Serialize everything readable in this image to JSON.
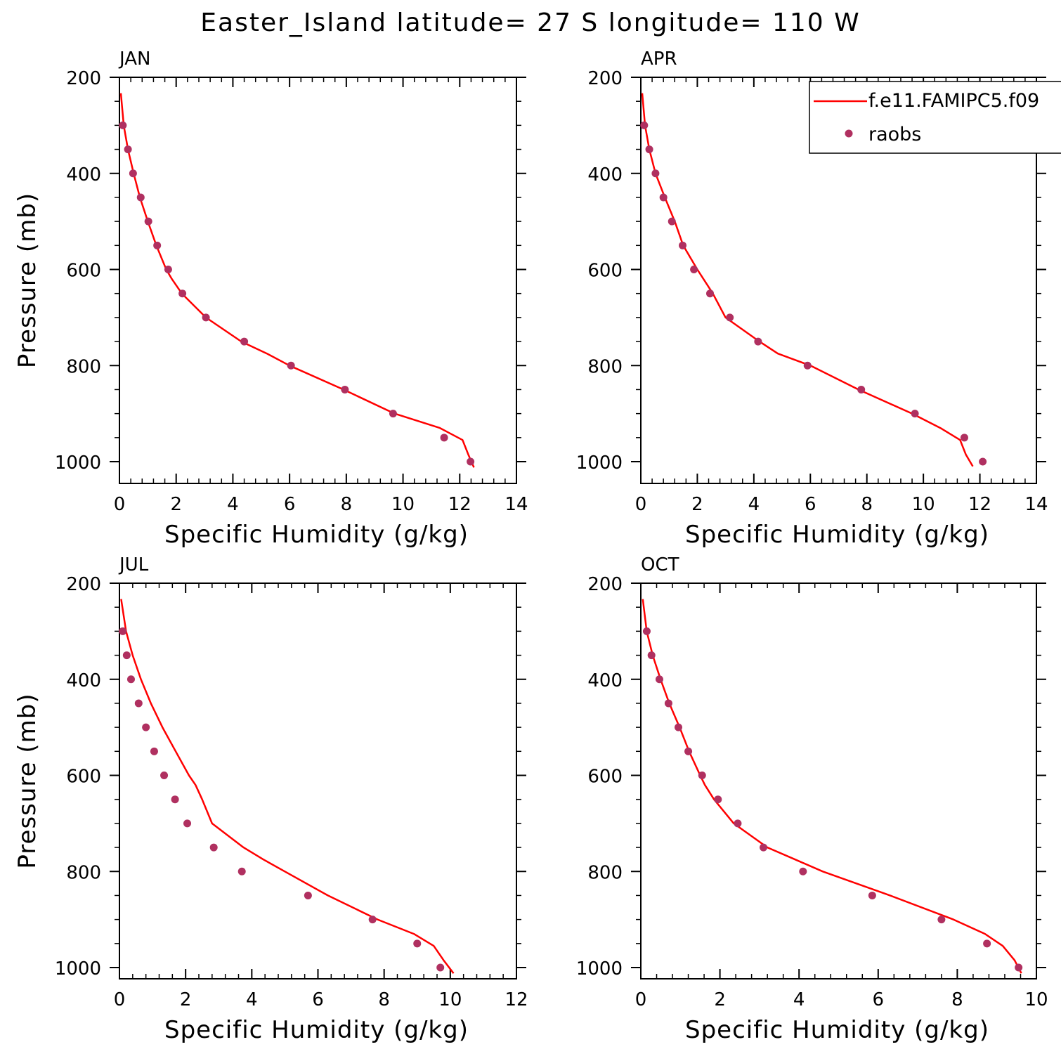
{
  "chart_data": {
    "suptitle": "Easter_Island  latitude= 27 S longitude= 110 W",
    "type": "line",
    "legend": {
      "position": "top-right",
      "entries": [
        {
          "label": "f.e11.FAMIPC5.f09",
          "kind": "line",
          "color": "#ff0000"
        },
        {
          "label": "raobs",
          "kind": "marker",
          "color": "#b03060"
        }
      ]
    },
    "panels": [
      {
        "title": "JAN",
        "xlabel": "Specific Humidity (g/kg)",
        "ylabel": "Pressure (mb)",
        "xlim": [
          0,
          14
        ],
        "xticks": [
          0,
          2,
          4,
          6,
          8,
          10,
          12,
          14
        ],
        "ylim": [
          200,
          1025
        ],
        "yticks": [
          200,
          400,
          600,
          800,
          1000
        ],
        "model": {
          "pressure": [
            233,
            300,
            350,
            400,
            450,
            500,
            550,
            600,
            620,
            650,
            700,
            750,
            775,
            800,
            850,
            900,
            930,
            955,
            985,
            1012
          ],
          "q": [
            0.05,
            0.15,
            0.3,
            0.5,
            0.72,
            1.0,
            1.3,
            1.65,
            1.85,
            2.2,
            3.05,
            4.3,
            5.2,
            6.0,
            7.9,
            9.7,
            11.3,
            12.1,
            12.3,
            12.5
          ]
        },
        "raobs": {
          "pressure": [
            300,
            350,
            400,
            450,
            500,
            550,
            600,
            650,
            700,
            750,
            800,
            850,
            900,
            950,
            1000
          ],
          "q": [
            0.12,
            0.3,
            0.48,
            0.75,
            1.02,
            1.33,
            1.72,
            2.22,
            3.05,
            4.4,
            6.05,
            7.95,
            9.65,
            11.45,
            12.38
          ]
        }
      },
      {
        "title": "APR",
        "xlabel": "Specific Humidity (g/kg)",
        "ylabel": "",
        "xlim": [
          0,
          14
        ],
        "xticks": [
          0,
          2,
          4,
          6,
          8,
          10,
          12,
          14
        ],
        "ylim": [
          200,
          1025
        ],
        "yticks": [
          200,
          400,
          600,
          800,
          1000
        ],
        "model": {
          "pressure": [
            233,
            300,
            350,
            400,
            450,
            500,
            550,
            600,
            650,
            700,
            750,
            775,
            800,
            850,
            900,
            930,
            955,
            985,
            1010
          ],
          "q": [
            0.05,
            0.15,
            0.3,
            0.52,
            0.85,
            1.2,
            1.5,
            2.0,
            2.55,
            3.0,
            4.2,
            4.85,
            6.0,
            7.7,
            9.6,
            10.6,
            11.3,
            11.5,
            11.75
          ]
        },
        "raobs": {
          "pressure": [
            300,
            350,
            400,
            450,
            500,
            550,
            600,
            650,
            700,
            750,
            800,
            850,
            900,
            950,
            1000
          ],
          "q": [
            0.12,
            0.3,
            0.52,
            0.8,
            1.1,
            1.48,
            1.88,
            2.45,
            3.15,
            4.15,
            5.9,
            7.8,
            9.7,
            11.45,
            12.1
          ]
        }
      },
      {
        "title": "JUL",
        "xlabel": "Specific Humidity (g/kg)",
        "ylabel": "Pressure (mb)",
        "xlim": [
          0,
          12
        ],
        "xticks": [
          0,
          2,
          4,
          6,
          8,
          10,
          12
        ],
        "ylim": [
          200,
          1025
        ],
        "yticks": [
          200,
          400,
          600,
          800,
          1000
        ],
        "model": {
          "pressure": [
            233,
            300,
            350,
            400,
            450,
            500,
            550,
            600,
            620,
            650,
            700,
            750,
            775,
            800,
            850,
            900,
            930,
            955,
            985,
            1012
          ],
          "q": [
            0.05,
            0.2,
            0.4,
            0.65,
            0.95,
            1.3,
            1.7,
            2.1,
            2.3,
            2.5,
            2.8,
            3.75,
            4.35,
            5.0,
            6.3,
            7.8,
            8.9,
            9.5,
            9.8,
            10.1
          ]
        },
        "raobs": {
          "pressure": [
            300,
            350,
            400,
            450,
            500,
            550,
            600,
            650,
            700,
            750,
            800,
            850,
            900,
            950,
            1000
          ],
          "q": [
            0.1,
            0.22,
            0.35,
            0.58,
            0.8,
            1.05,
            1.35,
            1.68,
            2.05,
            2.85,
            3.7,
            5.7,
            7.65,
            9.0,
            9.7
          ]
        }
      },
      {
        "title": "OCT",
        "xlabel": "Specific Humidity (g/kg)",
        "ylabel": "",
        "xlim": [
          0,
          10
        ],
        "xticks": [
          0,
          2,
          4,
          6,
          8,
          10
        ],
        "ylim": [
          200,
          1025
        ],
        "yticks": [
          200,
          400,
          600,
          800,
          1000
        ],
        "model": {
          "pressure": [
            233,
            300,
            350,
            400,
            450,
            500,
            550,
            600,
            620,
            650,
            700,
            750,
            775,
            800,
            850,
            900,
            930,
            955,
            985,
            1012
          ],
          "q": [
            0.05,
            0.15,
            0.3,
            0.5,
            0.72,
            0.98,
            1.22,
            1.5,
            1.62,
            1.85,
            2.35,
            3.2,
            3.9,
            4.6,
            6.3,
            7.9,
            8.7,
            9.15,
            9.45,
            9.62
          ]
        },
        "raobs": {
          "pressure": [
            300,
            350,
            400,
            450,
            500,
            550,
            600,
            650,
            700,
            750,
            800,
            850,
            900,
            950,
            1000
          ],
          "q": [
            0.15,
            0.27,
            0.47,
            0.7,
            0.95,
            1.2,
            1.55,
            1.95,
            2.45,
            3.1,
            4.1,
            5.85,
            7.6,
            8.75,
            9.55
          ]
        }
      }
    ]
  }
}
